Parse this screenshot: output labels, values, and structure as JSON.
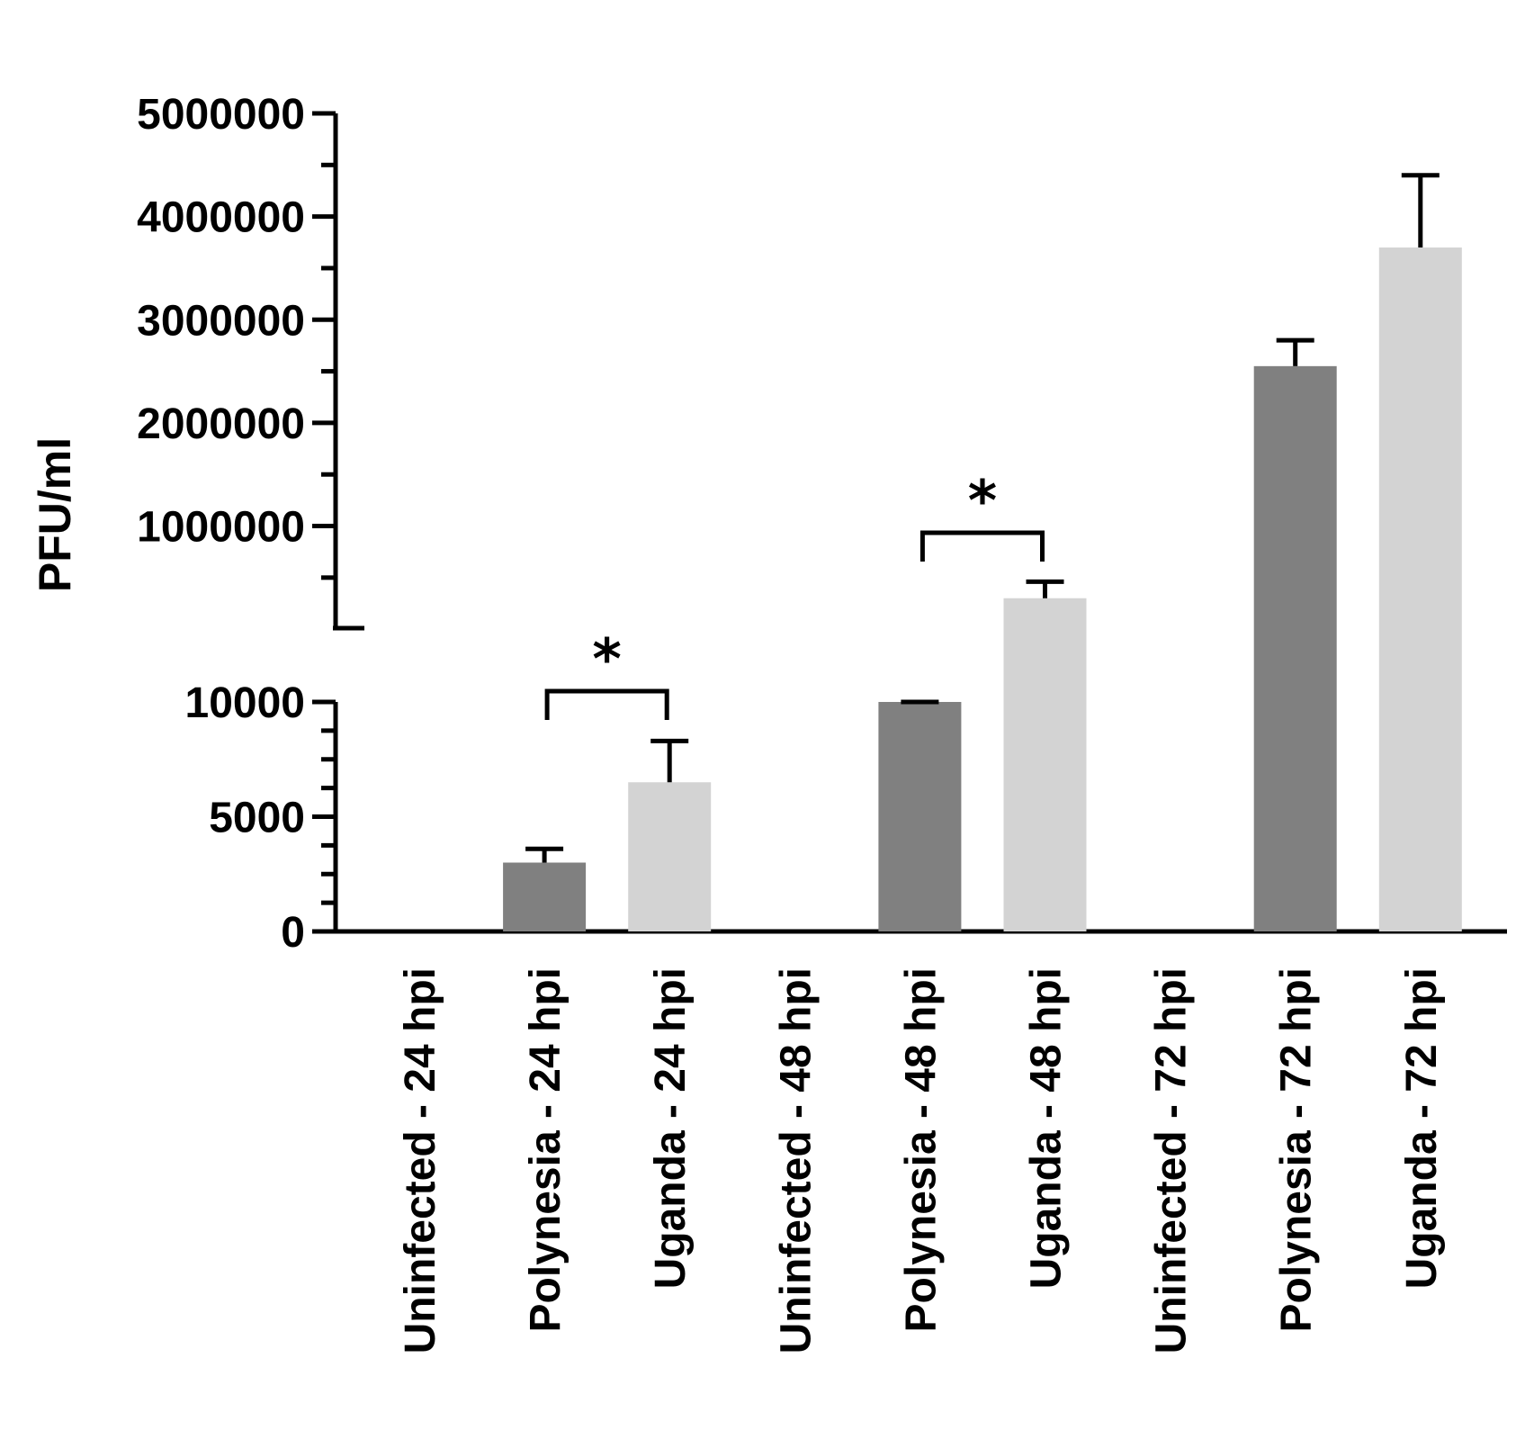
{
  "chart_data": {
    "type": "bar",
    "title": "",
    "xlabel": "",
    "ylabel": "PFU/ml",
    "axis_break": true,
    "lower_segment": {
      "ylim": [
        0,
        10000
      ],
      "ticks": [
        0,
        5000,
        10000
      ],
      "tick_labels": [
        "0",
        "5000",
        "10000"
      ]
    },
    "upper_segment": {
      "ylim": [
        10000,
        5000000
      ],
      "ticks": [
        1000000,
        2000000,
        3000000,
        4000000,
        5000000
      ],
      "tick_labels": [
        "1000000",
        "2000000",
        "3000000",
        "4000000",
        "5000000"
      ]
    },
    "categories": [
      "Uninfected - 24 hpi",
      "Polynesia - 24 hpi",
      "Uganda - 24 hpi",
      "Uninfected - 48 hpi",
      "Polynesia - 48 hpi",
      "Uganda - 48 hpi",
      "Uninfected - 72 hpi",
      "Polynesia - 72 hpi",
      "Uganda - 72 hpi"
    ],
    "values": [
      0,
      3000,
      6500,
      0,
      10000,
      300000,
      0,
      2550000,
      3700000
    ],
    "errors": [
      0,
      600,
      1800,
      0,
      0,
      160000,
      0,
      250000,
      700000
    ],
    "colors": [
      "#808080",
      "#808080",
      "#d3d3d3",
      "#808080",
      "#808080",
      "#d3d3d3",
      "#808080",
      "#808080",
      "#d3d3d3"
    ],
    "significance": [
      {
        "between": [
          1,
          2
        ],
        "label": "*"
      },
      {
        "between": [
          4,
          5
        ],
        "label": "*"
      }
    ],
    "grid": false,
    "legend": "none"
  }
}
